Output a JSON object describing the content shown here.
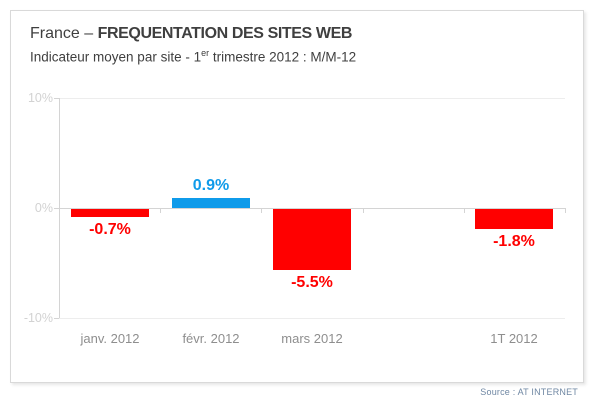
{
  "page": {
    "title_prefix": "France – ",
    "title_main": "FREQUENTATION DES SITES WEB",
    "subtitle_pre": "Indicateur moyen par site - 1",
    "subtitle_sup": "er",
    "subtitle_post": " trimestre 2012 : M/M-12",
    "source": "Source : AT INTERNET"
  },
  "colors": {
    "positive": "#0f9bea",
    "negative": "#ff0000",
    "axis": "#d4d4d4",
    "grid": "#ededed",
    "y_label": "#d2d2d2",
    "x_label": "#8e8e8e"
  },
  "chart_data": {
    "type": "bar",
    "title": "France – FREQUENTATION DES SITES WEB",
    "subtitle": "Indicateur moyen par site - 1er trimestre 2012 : M/M-12",
    "unit": "%",
    "ylim": [
      -10,
      10
    ],
    "grid": true,
    "legend": false,
    "yticks": [
      {
        "label": "10%",
        "value": 10
      },
      {
        "label": "0%",
        "value": 0
      },
      {
        "label": "-10%",
        "value": -10
      }
    ],
    "slots": 5,
    "categories": [
      "janv. 2012",
      "févr. 2012",
      "mars 2012",
      "1T 2012"
    ],
    "values": [
      -0.7,
      0.9,
      -5.5,
      -1.8
    ],
    "points": [
      {
        "category": "janv. 2012",
        "value": -0.7,
        "label": "-0.7%",
        "slot": 0
      },
      {
        "category": "févr. 2012",
        "value": 0.9,
        "label": "0.9%",
        "slot": 1
      },
      {
        "category": "mars 2012",
        "value": -5.5,
        "label": "-5.5%",
        "slot": 2
      },
      {
        "category": "1T 2012",
        "value": -1.8,
        "label": "-1.8%",
        "slot": 4
      }
    ],
    "source": "Source : AT INTERNET"
  }
}
